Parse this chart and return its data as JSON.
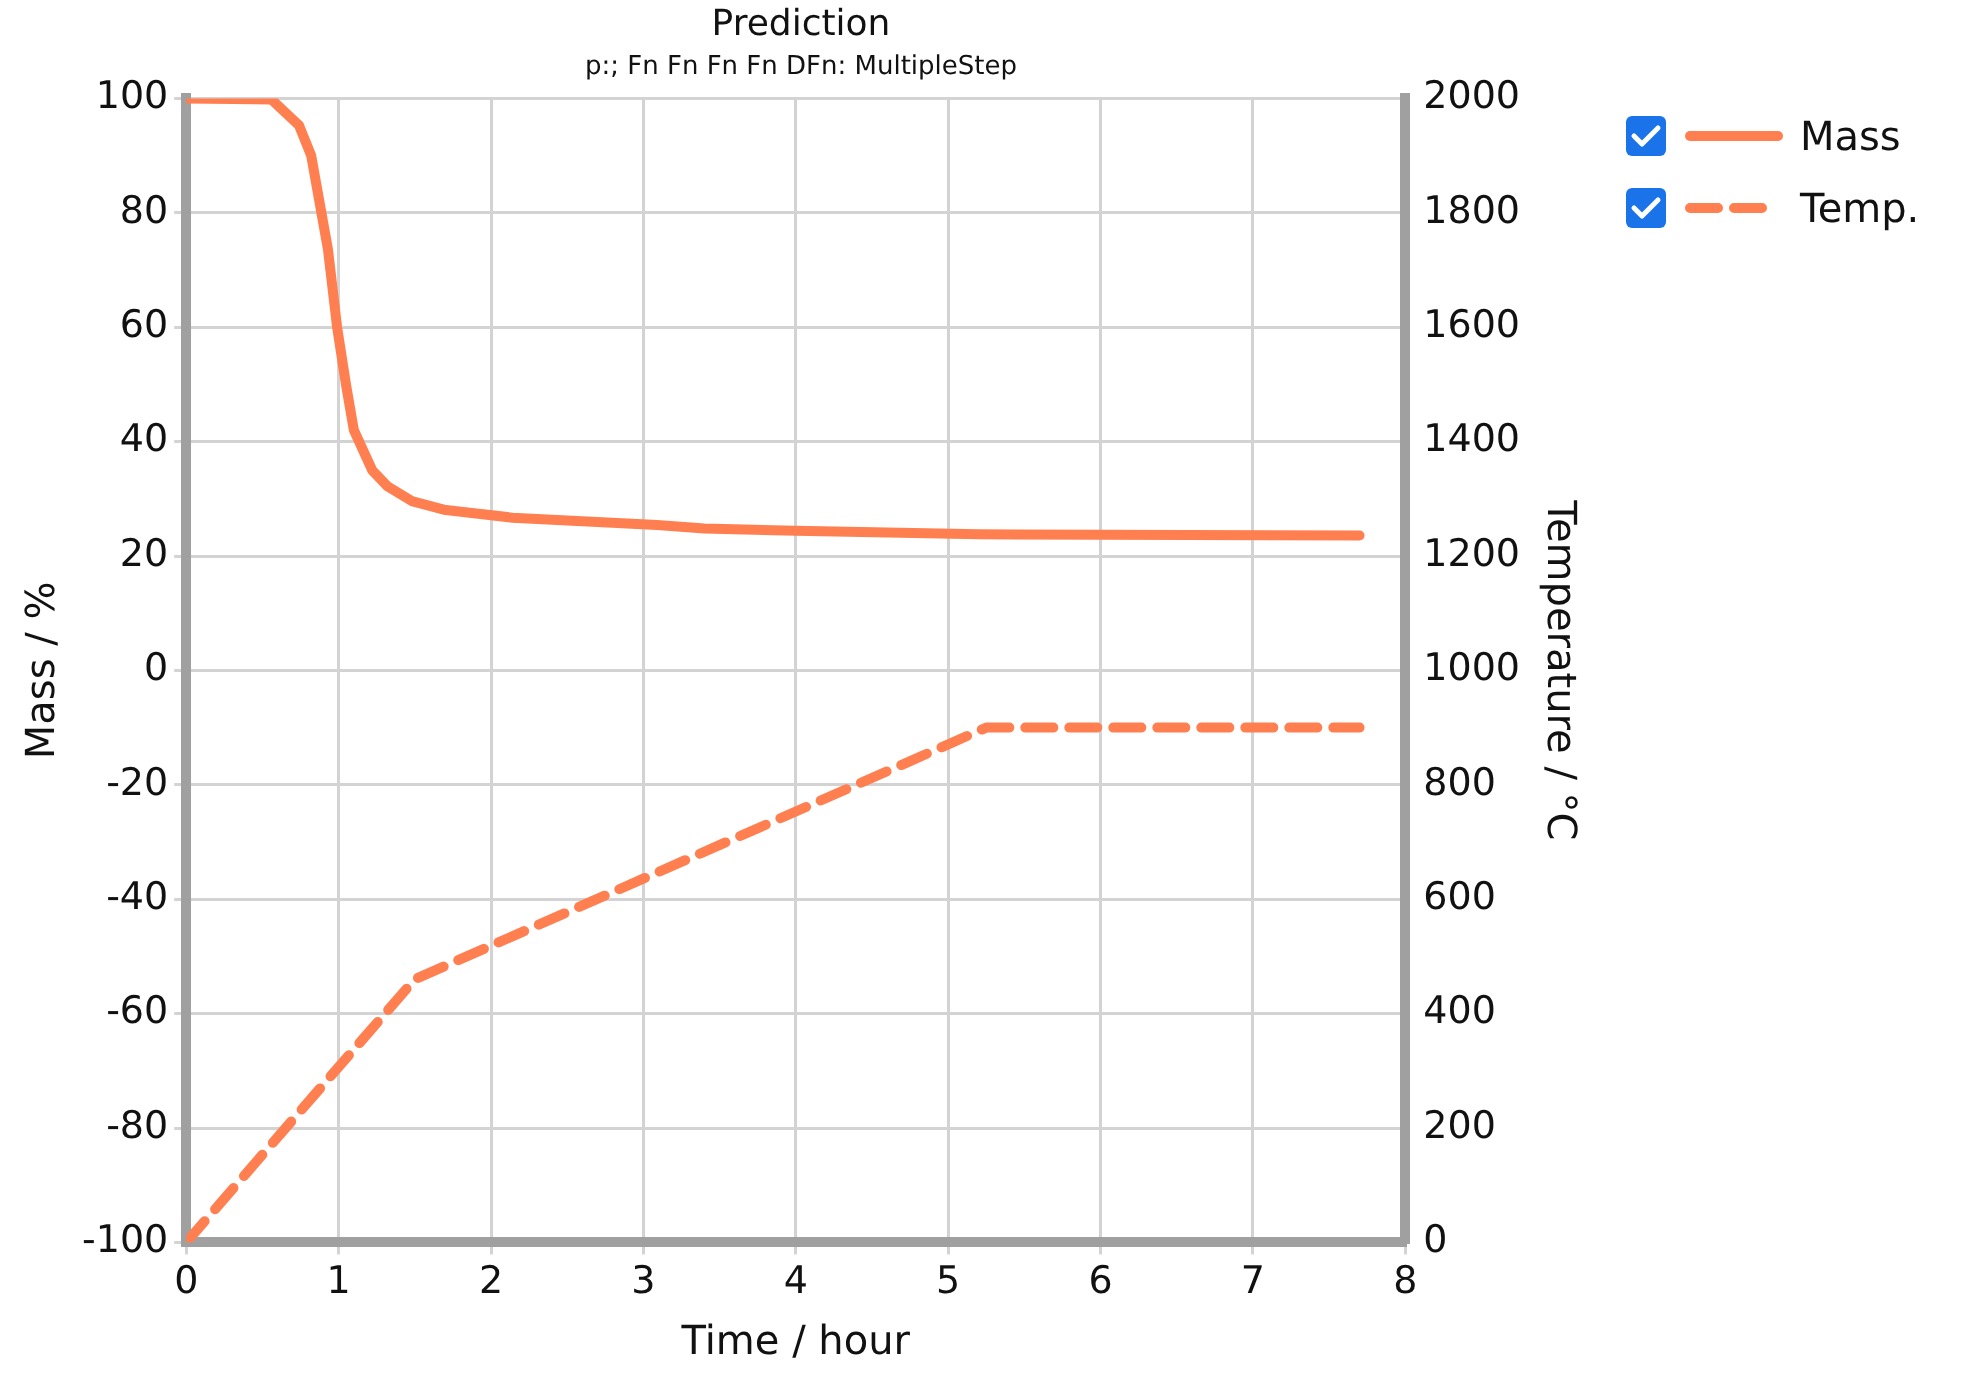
{
  "chart_data": {
    "type": "line",
    "title": "Prediction",
    "subtitle": "p:; Fn Fn Fn Fn DFn: MultipleStep",
    "xlabel": "Time / hour",
    "ylabel": "Mass / %",
    "y2label": "Temperature / °C",
    "xlim": [
      0,
      8
    ],
    "xticks": [
      0,
      1,
      2,
      3,
      4,
      5,
      6,
      7,
      8
    ],
    "ylim": [
      -100,
      100
    ],
    "yticks": [
      -100,
      -80,
      -60,
      -40,
      -20,
      0,
      20,
      40,
      60,
      80,
      100
    ],
    "y2lim": [
      0,
      2000
    ],
    "y2ticks": [
      0,
      200,
      400,
      600,
      800,
      1000,
      1200,
      1400,
      1600,
      1800,
      2000
    ],
    "grid": true,
    "legend": "top right",
    "marker": "none",
    "series": [
      {
        "name": "Mass",
        "color": "#ff7f50",
        "line_style": "solid",
        "x": [
          0,
          0.56,
          0.74,
          0.82,
          0.93,
          0.99,
          1.05,
          1.1,
          1.22,
          1.32,
          1.48,
          1.69,
          2.14,
          3.09,
          3.4,
          4,
          5.2,
          7.7
        ],
        "values": [
          100,
          99.8,
          95.3,
          90,
          73.6,
          60,
          49.7,
          42,
          35,
          32.2,
          29.6,
          28.1,
          26.7,
          25.4,
          24.8,
          24.4,
          23.8,
          23.6
        ]
      },
      {
        "name": "Temp.",
        "color": "#ff7f50",
        "line_style": "dashed",
        "axis": "y2",
        "x": [
          0,
          1.5,
          5.25,
          7.7
        ],
        "values": [
          0,
          460,
          900,
          900
        ]
      }
    ]
  }
}
